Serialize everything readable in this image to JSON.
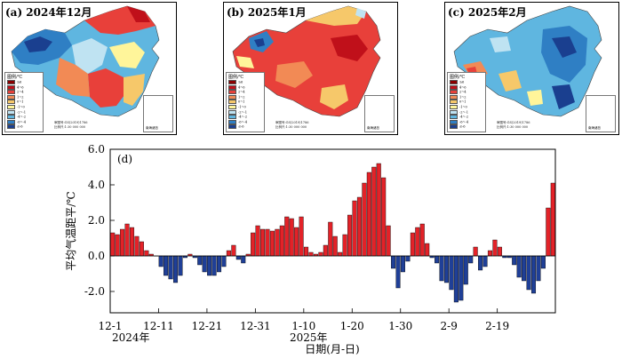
{
  "panels": [
    {
      "label": "(a) 2024年12月",
      "month": "2024-12",
      "theme": "warm-west-cold",
      "legend_title": "图例/℃",
      "note1": "审图号:GS(2019)1786",
      "note2": "比例尺:1:30 000 000",
      "inset": "南海诸岛"
    },
    {
      "label": "(b) 2025年1月",
      "month": "2025-01",
      "theme": "warm",
      "legend_title": "图例/℃",
      "note1": "审图号:GS(2019)1786",
      "note2": "比例尺:1:30 000 000",
      "inset": "南海诸岛"
    },
    {
      "label": "(c) 2025年2月",
      "month": "2025-02",
      "theme": "cold",
      "legend_title": "图例/℃",
      "note1": "审图号:GS(2019)1786",
      "note2": "比例尺:1:30 000 000",
      "inset": "南海诸岛"
    }
  ],
  "legend_items": [
    {
      "label": "≥6",
      "color": "#8b0000"
    },
    {
      "label": "4~6",
      "color": "#c0101a"
    },
    {
      "label": "2~4",
      "color": "#e8403a"
    },
    {
      "label": "1~2",
      "color": "#f28a55"
    },
    {
      "label": "0~1",
      "color": "#f6c86a"
    },
    {
      "label": "-1~0",
      "color": "#fff59a"
    },
    {
      "label": "-2~-1",
      "color": "#bfe3f2"
    },
    {
      "label": "-4~-2",
      "color": "#5fb6e0"
    },
    {
      "label": "-6~-4",
      "color": "#2f7fc4"
    },
    {
      "label": "≤-6",
      "color": "#1a3f8f"
    }
  ],
  "chart_data": {
    "type": "bar",
    "panel_label": "(d)",
    "ylabel": "平均气温距平/℃",
    "xlabel": "日期(月-日)",
    "ylim": [
      -3.2,
      6.0
    ],
    "yticks": [
      -2.0,
      0.0,
      2.0,
      4.0,
      6.0
    ],
    "ytick_labels": [
      "-2.0",
      "0.0",
      "2.0",
      "4.0",
      "6.0"
    ],
    "xtick_labels": [
      {
        "label": "12-1",
        "index": 0
      },
      {
        "label": "12-11",
        "index": 10
      },
      {
        "label": "12-21",
        "index": 20
      },
      {
        "label": "12-31",
        "index": 30
      },
      {
        "label": "1-10",
        "index": 40
      },
      {
        "label": "1-20",
        "index": 50
      },
      {
        "label": "1-30",
        "index": 60
      },
      {
        "label": "2-9",
        "index": 70
      },
      {
        "label": "2-19",
        "index": 80
      }
    ],
    "year_labels": [
      {
        "label": "2024年",
        "index": 0
      },
      {
        "label": "2025年",
        "index": 41
      }
    ],
    "positive_color": "#e32228",
    "negative_color": "#1f3f97",
    "values": [
      1.3,
      1.2,
      1.5,
      1.8,
      1.6,
      1.1,
      0.8,
      0.3,
      0.1,
      0.0,
      -0.6,
      -1.1,
      -1.3,
      -1.5,
      -1.1,
      -0.1,
      0.1,
      -0.1,
      -0.5,
      -0.9,
      -1.1,
      -1.1,
      -0.9,
      -0.6,
      0.3,
      0.6,
      -0.2,
      -0.4,
      0.1,
      1.3,
      1.7,
      1.5,
      1.5,
      1.4,
      1.5,
      1.7,
      2.2,
      2.1,
      1.6,
      2.2,
      0.5,
      0.2,
      0.1,
      0.2,
      0.6,
      1.9,
      1.1,
      0.2,
      1.2,
      2.3,
      3.1,
      3.3,
      4.1,
      4.7,
      5.0,
      5.2,
      4.4,
      1.7,
      -0.7,
      -1.8,
      -0.9,
      -0.3,
      1.3,
      1.6,
      1.8,
      0.7,
      -0.1,
      -0.4,
      -1.4,
      -1.5,
      -1.9,
      -2.6,
      -2.5,
      -1.6,
      -0.4,
      0.5,
      -0.8,
      -0.6,
      0.3,
      0.9,
      0.5,
      -0.1,
      -0.1,
      -0.5,
      -1.2,
      -1.4,
      -1.9,
      -2.1,
      -1.4,
      -0.7,
      2.7,
      4.1
    ]
  }
}
